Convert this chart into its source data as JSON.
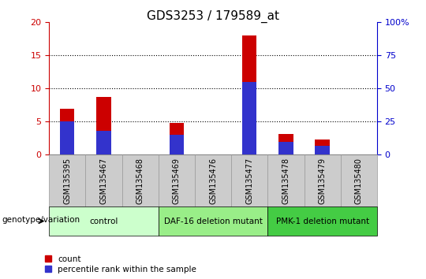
{
  "title": "GDS3253 / 179589_at",
  "samples": [
    "GSM135395",
    "GSM135467",
    "GSM135468",
    "GSM135469",
    "GSM135476",
    "GSM135477",
    "GSM135478",
    "GSM135479",
    "GSM135480"
  ],
  "count_values": [
    7.0,
    8.7,
    0.0,
    4.8,
    0.0,
    18.0,
    3.2,
    2.3,
    0.0
  ],
  "percentile_values": [
    25.0,
    18.0,
    0.0,
    15.0,
    0.0,
    55.0,
    10.0,
    7.0,
    0.0
  ],
  "left_ylim": [
    0,
    20
  ],
  "right_ylim": [
    0,
    100
  ],
  "left_yticks": [
    0,
    5,
    10,
    15,
    20
  ],
  "right_yticks": [
    0,
    25,
    50,
    75,
    100
  ],
  "left_yticklabels": [
    "0",
    "5",
    "10",
    "15",
    "20"
  ],
  "right_yticklabels": [
    "0",
    "25",
    "50",
    "75",
    "100%"
  ],
  "red_color": "#cc0000",
  "blue_color": "#3333cc",
  "groups": [
    {
      "label": "control",
      "indices": [
        0,
        1,
        2
      ],
      "color": "#ccffcc"
    },
    {
      "label": "DAF-16 deletion mutant",
      "indices": [
        3,
        4,
        5
      ],
      "color": "#99ee88"
    },
    {
      "label": "PMK-1 deletion mutant",
      "indices": [
        6,
        7,
        8
      ],
      "color": "#44cc44"
    }
  ],
  "legend_count_label": "count",
  "legend_percentile_label": "percentile rank within the sample",
  "genotype_label": "genotype/variation",
  "left_axis_color": "#cc0000",
  "right_axis_color": "#0000cc",
  "title_fontsize": 11,
  "bar_width": 0.4,
  "sample_bg_color": "#cccccc",
  "sample_border_color": "#999999"
}
